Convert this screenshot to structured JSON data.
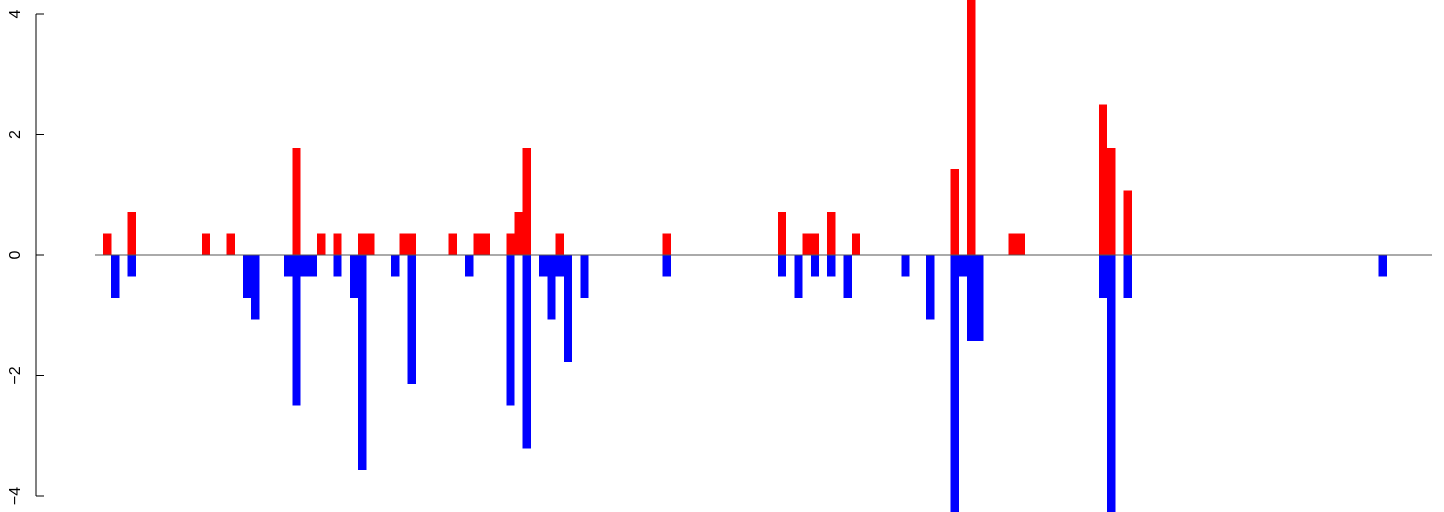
{
  "chart_data": {
    "type": "bar",
    "title": "",
    "xlabel": "",
    "ylabel": "",
    "ylim": [
      -4.3,
      4.3
    ],
    "yticks": [
      -4,
      -2,
      0,
      2,
      4
    ],
    "ytick_labels": [
      "−4",
      "−2",
      "0",
      "2",
      "4"
    ],
    "grid": false,
    "legend": "none",
    "baseline": 0,
    "colors": {
      "positive": "#ff0000",
      "negative": "#0000ff",
      "axis": "#000000",
      "baseline": "#555555"
    },
    "positions": [
      1,
      174
    ],
    "positive": [
      {
        "x": 1,
        "value": 0.36
      },
      {
        "x": 4,
        "value": 0.71
      },
      {
        "x": 13,
        "value": 0.36
      },
      {
        "x": 16,
        "value": 0.36
      },
      {
        "x": 24,
        "value": 1.78
      },
      {
        "x": 27,
        "value": 0.36
      },
      {
        "x": 29,
        "value": 0.36
      },
      {
        "x": 32,
        "value": 0.36
      },
      {
        "x": 33,
        "value": 0.36
      },
      {
        "x": 37,
        "value": 0.36
      },
      {
        "x": 38,
        "value": 0.36
      },
      {
        "x": 43,
        "value": 0.36
      },
      {
        "x": 46,
        "value": 0.36
      },
      {
        "x": 47,
        "value": 0.36
      },
      {
        "x": 50,
        "value": 0.36
      },
      {
        "x": 51,
        "value": 0.71
      },
      {
        "x": 52,
        "value": 1.78
      },
      {
        "x": 56,
        "value": 0.36
      },
      {
        "x": 69,
        "value": 0.36
      },
      {
        "x": 83,
        "value": 0.71
      },
      {
        "x": 86,
        "value": 0.36
      },
      {
        "x": 87,
        "value": 0.36
      },
      {
        "x": 89,
        "value": 0.71
      },
      {
        "x": 92,
        "value": 0.36
      },
      {
        "x": 104,
        "value": 1.43
      },
      {
        "x": 106,
        "value": 4.3
      },
      {
        "x": 111,
        "value": 0.36
      },
      {
        "x": 112,
        "value": 0.36
      },
      {
        "x": 122,
        "value": 2.5
      },
      {
        "x": 123,
        "value": 1.78
      },
      {
        "x": 125,
        "value": 1.07
      }
    ],
    "negative": [
      {
        "x": 2,
        "value": -0.71
      },
      {
        "x": 4,
        "value": -0.36
      },
      {
        "x": 18,
        "value": -0.71
      },
      {
        "x": 19,
        "value": -1.07
      },
      {
        "x": 23,
        "value": -0.36
      },
      {
        "x": 24,
        "value": -2.5
      },
      {
        "x": 25,
        "value": -0.36
      },
      {
        "x": 26,
        "value": -0.36
      },
      {
        "x": 29,
        "value": -0.36
      },
      {
        "x": 31,
        "value": -0.71
      },
      {
        "x": 32,
        "value": -3.57
      },
      {
        "x": 36,
        "value": -0.36
      },
      {
        "x": 38,
        "value": -2.14
      },
      {
        "x": 45,
        "value": -0.36
      },
      {
        "x": 50,
        "value": -2.5
      },
      {
        "x": 52,
        "value": -3.21
      },
      {
        "x": 54,
        "value": -0.36
      },
      {
        "x": 55,
        "value": -1.07
      },
      {
        "x": 56,
        "value": -0.36
      },
      {
        "x": 57,
        "value": -1.78
      },
      {
        "x": 59,
        "value": -0.71
      },
      {
        "x": 69,
        "value": -0.36
      },
      {
        "x": 83,
        "value": -0.36
      },
      {
        "x": 85,
        "value": -0.71
      },
      {
        "x": 87,
        "value": -0.36
      },
      {
        "x": 89,
        "value": -0.36
      },
      {
        "x": 91,
        "value": -0.71
      },
      {
        "x": 98,
        "value": -0.36
      },
      {
        "x": 101,
        "value": -1.07
      },
      {
        "x": 104,
        "value": -4.3
      },
      {
        "x": 105,
        "value": -0.36
      },
      {
        "x": 106,
        "value": -1.43
      },
      {
        "x": 107,
        "value": -1.43
      },
      {
        "x": 122,
        "value": -0.71
      },
      {
        "x": 123,
        "value": -4.3
      },
      {
        "x": 125,
        "value": -0.71
      },
      {
        "x": 156,
        "value": -0.36
      }
    ]
  }
}
